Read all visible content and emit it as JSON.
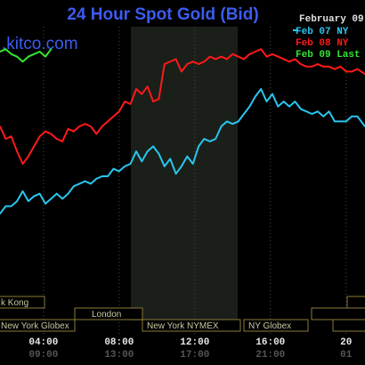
{
  "header": {
    "title": "24 Hour Spot Gold (Bid)",
    "brand": ".kitco.com",
    "date_label": "February 09"
  },
  "colors": {
    "background": "#000000",
    "title": "#3c5cf0",
    "session_band": "#1a1f19",
    "grid": "#4a4a4a",
    "feb07": "#29c6f0",
    "feb08": "#ff1a1a",
    "feb09": "#33e633"
  },
  "sessions": [
    {
      "name": "k Kong"
    },
    {
      "name": "New York Globex"
    },
    {
      "name": "London"
    },
    {
      "name": "New York NYMEX"
    },
    {
      "name": "NY Globex"
    }
  ],
  "chart_data": {
    "type": "line",
    "title": "24 Hour Spot Gold (Bid)",
    "legend_position": "top-right",
    "grid": true,
    "x_ticks_primary": [
      "04:00",
      "08:00",
      "12:00",
      "16:00",
      "20"
    ],
    "x_ticks_secondary": [
      "09:00",
      "13:00",
      "17:00",
      "21:00",
      "01"
    ],
    "xlim": [
      1.7,
      21
    ],
    "ylim": [
      0,
      100
    ],
    "series": [
      {
        "name": "Feb 07 NY",
        "color": "#29c6f0",
        "x": [
          1.7,
          2.0,
          2.3,
          2.6,
          2.9,
          3.2,
          3.5,
          3.8,
          4.1,
          4.4,
          4.7,
          5.0,
          5.3,
          5.6,
          5.9,
          6.2,
          6.5,
          6.8,
          7.1,
          7.4,
          7.7,
          8.0,
          8.3,
          8.6,
          8.9,
          9.2,
          9.5,
          9.8,
          10.1,
          10.4,
          10.7,
          11.0,
          11.3,
          11.6,
          11.9,
          12.2,
          12.5,
          12.8,
          13.1,
          13.4,
          13.7,
          14.0,
          14.3,
          14.6,
          14.9,
          15.2,
          15.5,
          15.8,
          16.1,
          16.4,
          16.7,
          17.0,
          17.3,
          17.6,
          17.9,
          18.2,
          18.5,
          18.8,
          19.1,
          19.4,
          19.7,
          20.0,
          20.3,
          20.6,
          21.0
        ],
        "values": [
          25,
          28,
          28,
          30,
          34,
          30,
          32,
          33,
          29,
          31,
          33,
          31,
          33,
          36,
          37,
          38,
          37,
          39,
          40,
          40,
          43,
          42,
          44,
          45,
          50,
          46,
          50,
          52,
          49,
          44,
          47,
          41,
          44,
          48,
          45,
          52,
          55,
          54,
          55,
          60,
          62,
          61,
          62,
          65,
          68,
          72,
          75,
          70,
          73,
          68,
          70,
          68,
          70,
          67,
          66,
          65,
          66,
          64,
          66,
          62,
          62,
          62,
          64,
          64,
          60
        ]
      },
      {
        "name": "Feb 08 NY",
        "color": "#ff1a1a",
        "x": [
          1.7,
          2.0,
          2.3,
          2.6,
          2.9,
          3.2,
          3.5,
          3.8,
          4.1,
          4.4,
          4.7,
          5.0,
          5.3,
          5.6,
          5.9,
          6.2,
          6.5,
          6.8,
          7.1,
          7.4,
          7.7,
          8.0,
          8.3,
          8.6,
          8.9,
          9.2,
          9.5,
          9.8,
          10.1,
          10.4,
          10.7,
          11.0,
          11.3,
          11.6,
          11.9,
          12.2,
          12.5,
          12.8,
          13.1,
          13.4,
          13.7,
          14.0,
          14.3,
          14.6,
          14.9,
          15.2,
          15.5,
          15.8,
          16.1,
          16.4,
          16.7,
          17.0,
          17.3,
          17.6,
          17.9,
          18.2,
          18.5,
          18.8,
          19.1,
          19.4,
          19.7,
          20.0,
          20.3,
          20.6,
          21.0
        ],
        "values": [
          60,
          55,
          56,
          50,
          45,
          48,
          52,
          56,
          58,
          57,
          55,
          54,
          59,
          58,
          60,
          61,
          60,
          57,
          60,
          62,
          64,
          66,
          70,
          69,
          75,
          73,
          76,
          70,
          71,
          85,
          86,
          87,
          82,
          85,
          86,
          85,
          86,
          88,
          87,
          88,
          87,
          89,
          88,
          87,
          89,
          90,
          91,
          88,
          89,
          88,
          87,
          86,
          87,
          85,
          84,
          84,
          85,
          84,
          84,
          83,
          84,
          82,
          82,
          83,
          81
        ]
      },
      {
        "name": "Feb 09 Last",
        "color": "#33e633",
        "x": [
          1.7,
          2.0,
          2.3,
          2.6,
          2.9,
          3.2,
          3.5,
          3.8,
          4.1,
          4.4
        ],
        "values": [
          90,
          91,
          89,
          88,
          86,
          88,
          89,
          90,
          88,
          91
        ]
      }
    ]
  }
}
